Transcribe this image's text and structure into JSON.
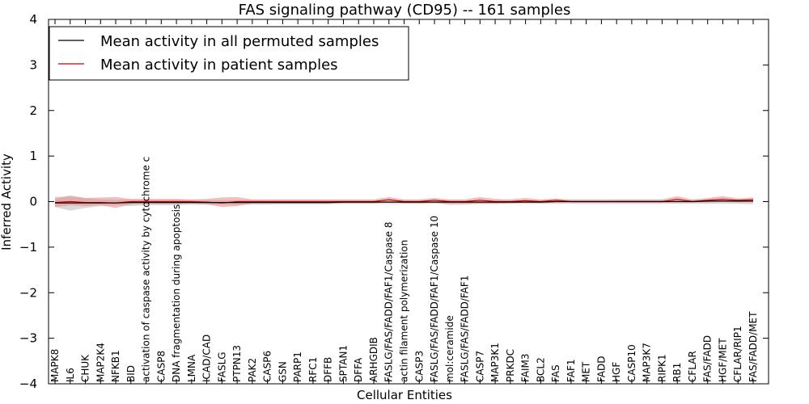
{
  "chart_data": {
    "type": "line",
    "title": "FAS signaling pathway (CD95) -- 161 samples",
    "xlabel": "Cellular Entities",
    "ylabel": "Inferred Activity",
    "ylim": [
      -4,
      4
    ],
    "yticks": [
      "−4",
      "−3",
      "−2",
      "−1",
      "0",
      "1",
      "2",
      "3",
      "4"
    ],
    "ytick_values": [
      -4,
      -3,
      -2,
      -1,
      0,
      1,
      2,
      3,
      4
    ],
    "grid": false,
    "legend_position": "top-left",
    "categories": [
      "MAPK8",
      "IL6",
      "CHUK",
      "MAP2K4",
      "NFKB1",
      "BID",
      "activation of caspase activity by cytochrome c",
      "CASP8",
      "DNA fragmentation during apoptosis",
      "LMNA",
      "ICAD/CAD",
      "FASLG",
      "PTPN13",
      "PAK2",
      "CASP6",
      "GSN",
      "PARP1",
      "RFC1",
      "DFFB",
      "SPTAN1",
      "DFFA",
      "ARHGDIB",
      "FASLG/FAS/FADD/FAF1/Caspase 8",
      "actin filament polymerization",
      "CASP3",
      "FASLG/FAS/FADD/FAF1/Caspase 10",
      "mol:ceramide",
      "FASLG/FAS/FADD/FAF1",
      "CASP7",
      "MAP3K1",
      "PRKDC",
      "FAIM3",
      "BCL2",
      "FAS",
      "FAF1",
      "MET",
      "FADD",
      "HGF",
      "CASP10",
      "MAP3K7",
      "RIPK1",
      "RB1",
      "CFLAR",
      "FAS/FADD",
      "HGF/MET",
      "CFLAR/RIP1",
      "FAS/FADD/MET"
    ],
    "series": [
      {
        "name": "Mean activity in all permuted samples",
        "color": "#000000",
        "band_color": "#bbbbbb",
        "values": [
          -0.03,
          -0.03,
          -0.03,
          -0.03,
          -0.03,
          -0.02,
          -0.02,
          -0.02,
          -0.02,
          -0.02,
          -0.02,
          -0.02,
          -0.02,
          -0.02,
          -0.02,
          -0.02,
          -0.02,
          -0.02,
          -0.02,
          -0.01,
          -0.01,
          -0.01,
          -0.01,
          -0.01,
          -0.01,
          -0.01,
          -0.01,
          -0.01,
          -0.01,
          -0.01,
          -0.01,
          -0.01,
          -0.01,
          0.0,
          0.0,
          0.0,
          0.0,
          0.0,
          0.0,
          0.0,
          0.0,
          0.0,
          0.0,
          0.01,
          0.01,
          0.01,
          0.01
        ],
        "band_lower": [
          -0.12,
          -0.2,
          -0.14,
          -0.1,
          -0.08,
          -0.1,
          -0.08,
          -0.08,
          -0.08,
          -0.07,
          -0.07,
          -0.07,
          -0.07,
          -0.07,
          -0.07,
          -0.06,
          -0.06,
          -0.06,
          -0.06,
          -0.05,
          -0.05,
          -0.05,
          -0.05,
          -0.05,
          -0.05,
          -0.05,
          -0.05,
          -0.05,
          -0.05,
          -0.05,
          -0.05,
          -0.05,
          -0.05,
          -0.05,
          -0.05,
          -0.05,
          -0.05,
          -0.05,
          -0.05,
          -0.05,
          -0.05,
          -0.05,
          -0.05,
          -0.05,
          -0.05,
          -0.05,
          -0.06
        ],
        "band_upper": [
          0.06,
          0.14,
          0.08,
          0.05,
          0.04,
          0.05,
          0.04,
          0.04,
          0.04,
          0.03,
          0.03,
          0.03,
          0.03,
          0.03,
          0.03,
          0.03,
          0.03,
          0.03,
          0.03,
          0.03,
          0.03,
          0.03,
          0.03,
          0.03,
          0.03,
          0.03,
          0.03,
          0.03,
          0.03,
          0.03,
          0.03,
          0.03,
          0.03,
          0.03,
          0.03,
          0.03,
          0.03,
          0.04,
          0.04,
          0.04,
          0.04,
          0.04,
          0.04,
          0.05,
          0.05,
          0.05,
          0.06
        ]
      },
      {
        "name": "Mean activity in patient samples",
        "color": "#cc0000",
        "band_color": "#e87e7e",
        "values": [
          -0.02,
          0.0,
          -0.02,
          -0.02,
          -0.03,
          0.0,
          0.0,
          0.0,
          0.0,
          0.0,
          -0.01,
          -0.03,
          0.0,
          0.0,
          0.0,
          0.0,
          0.0,
          0.0,
          0.0,
          0.0,
          0.0,
          0.0,
          0.04,
          0.0,
          0.0,
          0.03,
          0.0,
          0.0,
          0.03,
          0.0,
          0.0,
          0.02,
          0.0,
          0.03,
          0.0,
          0.0,
          0.0,
          0.0,
          0.0,
          0.0,
          0.0,
          0.05,
          0.0,
          0.03,
          0.05,
          0.03,
          0.04
        ],
        "band_lower": [
          -0.12,
          -0.08,
          -0.1,
          -0.08,
          -0.14,
          -0.06,
          -0.05,
          -0.05,
          -0.05,
          -0.04,
          -0.06,
          -0.12,
          -0.1,
          -0.04,
          -0.04,
          -0.04,
          -0.04,
          -0.04,
          -0.04,
          -0.04,
          -0.04,
          -0.04,
          0.0,
          -0.04,
          -0.04,
          -0.02,
          -0.07,
          -0.06,
          -0.05,
          -0.05,
          -0.04,
          -0.02,
          -0.03,
          -0.02,
          -0.02,
          -0.02,
          -0.02,
          -0.02,
          -0.02,
          -0.02,
          -0.02,
          -0.01,
          -0.02,
          -0.02,
          0.0,
          -0.02,
          -0.01
        ],
        "band_upper": [
          0.1,
          0.11,
          0.08,
          0.09,
          0.1,
          0.06,
          0.06,
          0.06,
          0.06,
          0.05,
          0.06,
          0.09,
          0.1,
          0.05,
          0.05,
          0.05,
          0.05,
          0.05,
          0.05,
          0.05,
          0.05,
          0.05,
          0.1,
          0.05,
          0.05,
          0.08,
          0.05,
          0.05,
          0.1,
          0.06,
          0.05,
          0.08,
          0.05,
          0.07,
          0.05,
          0.05,
          0.05,
          0.05,
          0.05,
          0.05,
          0.05,
          0.12,
          0.05,
          0.08,
          0.12,
          0.07,
          0.09
        ]
      }
    ]
  }
}
